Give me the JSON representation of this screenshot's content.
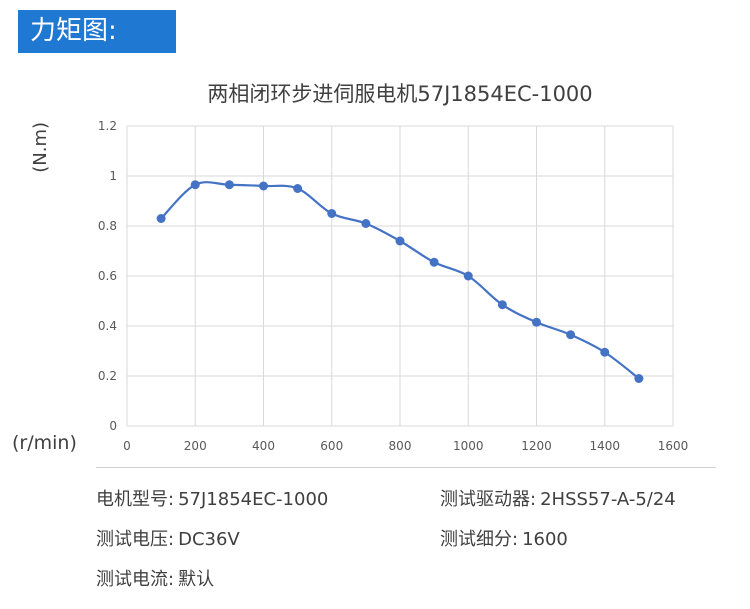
{
  "header": {
    "title": "力矩图:"
  },
  "chart_data": {
    "type": "line",
    "title": "两相闭环步进伺服电机57J1854EC-1000",
    "ylabel": "(N.m)",
    "xlabel": "(r/min)",
    "xlim": [
      0,
      1600
    ],
    "ylim": [
      0,
      1.2
    ],
    "x_ticks": [
      "0",
      "200",
      "400",
      "600",
      "800",
      "1000",
      "1200",
      "1400",
      "1600"
    ],
    "y_ticks": [
      "0",
      "0.2",
      "0.4",
      "0.6",
      "0.8",
      "1",
      "1.2"
    ],
    "grid": true,
    "series": [
      {
        "color": "#4472c4",
        "x": [
          100,
          200,
          300,
          400,
          500,
          600,
          700,
          800,
          900,
          1000,
          1100,
          1200,
          1300,
          1400,
          1500
        ],
        "y": [
          0.83,
          0.965,
          0.965,
          0.96,
          0.95,
          0.85,
          0.81,
          0.74,
          0.655,
          0.6,
          0.485,
          0.415,
          0.365,
          0.295,
          0.19
        ]
      }
    ]
  },
  "specs": {
    "motor_model_label": "电机型号:",
    "motor_model_value": "57J1854EC-1000",
    "driver_label": "测试驱动器:",
    "driver_value": "2HSS57-A-5/24",
    "voltage_label": "测试电压:",
    "voltage_value": "DC36V",
    "microstep_label": "测试细分:",
    "microstep_value": "1600",
    "current_label": "测试电流:",
    "current_value": "默认"
  }
}
